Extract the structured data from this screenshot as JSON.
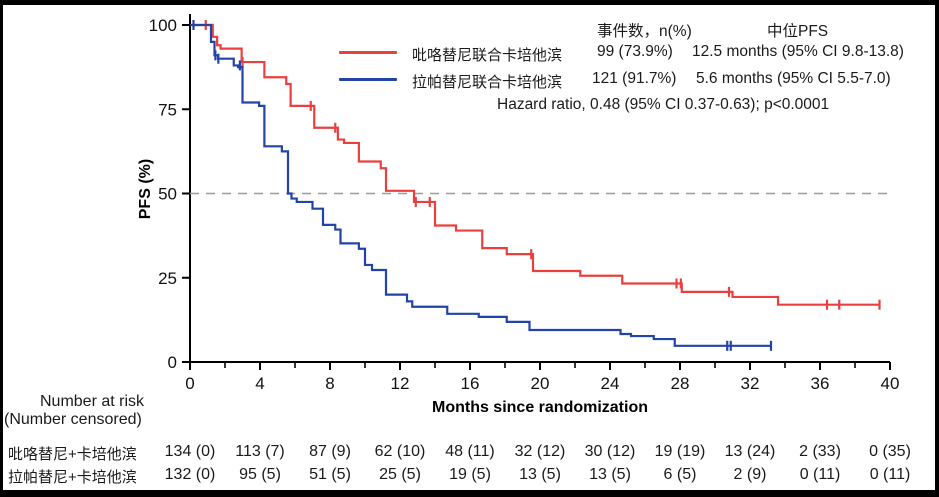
{
  "legend": {
    "col_event_header": "事件数，n(%)",
    "col_median_header": "中位PFS",
    "hazard": "Hazard ratio, 0.48 (95% CI 0.37-0.63); p<0.0001",
    "series": [
      {
        "label": "吡咯替尼联合卡培他滨",
        "events": "99 (73.9%)",
        "median": "12.5 months (95% CI 9.8-13.8)"
      },
      {
        "label": "拉帕替尼联合卡培他滨",
        "events": "121 (91.7%)",
        "median": "5.6 months (95% CI 5.5-7.0)"
      }
    ]
  },
  "chart_data": {
    "type": "line",
    "subtype": "kaplan-meier-step",
    "xlabel": "Months since randomization",
    "ylabel": "PFS (%)",
    "xlim": [
      0,
      40
    ],
    "ylim": [
      0,
      100
    ],
    "xticks": [
      0,
      4,
      8,
      12,
      16,
      20,
      24,
      28,
      32,
      36,
      40
    ],
    "xticks_minor_step": 2,
    "yticks": [
      0,
      25,
      50,
      75,
      100
    ],
    "grid": false,
    "reference_line_y": 50,
    "legend_position": "top-center",
    "series": [
      {
        "key": "pyrotinib-capecitabine",
        "name": "吡咯替尼联合卡培他滨",
        "color": "#e9403f",
        "median_months": 12.5,
        "start": 100,
        "end_time": 39.4,
        "drops": [
          [
            1.3,
            96.5
          ],
          [
            1.55,
            94
          ],
          [
            1.75,
            93
          ],
          [
            2.95,
            89
          ],
          [
            4.25,
            84.5
          ],
          [
            5.5,
            82.5
          ],
          [
            5.75,
            76
          ],
          [
            7.1,
            69.5
          ],
          [
            8.45,
            66
          ],
          [
            8.8,
            65
          ],
          [
            9.65,
            59.5
          ],
          [
            10.9,
            57.5
          ],
          [
            11.2,
            50.8
          ],
          [
            12.8,
            47.5
          ],
          [
            14.0,
            40.5
          ],
          [
            15.2,
            39
          ],
          [
            16.7,
            33.8
          ],
          [
            18.1,
            32
          ],
          [
            19.6,
            27
          ],
          [
            22.3,
            25.6
          ],
          [
            24.7,
            23.3
          ],
          [
            28.1,
            20.8
          ],
          [
            31.0,
            19.3
          ],
          [
            33.6,
            17
          ]
        ],
        "censors": [
          [
            0.9,
            100
          ],
          [
            3.0,
            89
          ],
          [
            6.9,
            76
          ],
          [
            8.3,
            69.5
          ],
          [
            12.9,
            47.5
          ],
          [
            13.7,
            47.5
          ],
          [
            19.5,
            32
          ],
          [
            27.8,
            23.3
          ],
          [
            28.05,
            23.3
          ],
          [
            30.8,
            20.8
          ],
          [
            36.4,
            17
          ],
          [
            37.1,
            17
          ],
          [
            39.4,
            17
          ]
        ]
      },
      {
        "key": "lapatinib-capecitabine",
        "name": "拉帕替尼联合卡培他滨",
        "color": "#2344a7",
        "median_months": 5.6,
        "start": 100,
        "end_time": 33.2,
        "drops": [
          [
            1.2,
            95
          ],
          [
            1.4,
            91
          ],
          [
            1.6,
            90
          ],
          [
            2.5,
            88
          ],
          [
            2.75,
            87.5
          ],
          [
            3.0,
            77
          ],
          [
            3.95,
            76
          ],
          [
            4.25,
            64
          ],
          [
            5.25,
            62.5
          ],
          [
            5.6,
            50
          ],
          [
            5.8,
            48.5
          ],
          [
            6.1,
            47.5
          ],
          [
            7.0,
            45.5
          ],
          [
            7.6,
            40.7
          ],
          [
            8.3,
            39.3
          ],
          [
            8.6,
            35.2
          ],
          [
            9.65,
            33.6
          ],
          [
            10.0,
            28.8
          ],
          [
            10.4,
            27.3
          ],
          [
            11.2,
            20
          ],
          [
            12.4,
            18
          ],
          [
            12.7,
            16.4
          ],
          [
            14.7,
            14.3
          ],
          [
            16.5,
            13.4
          ],
          [
            18.1,
            11.9
          ],
          [
            19.4,
            9.5
          ],
          [
            24.6,
            8.3
          ],
          [
            25.2,
            7.7
          ],
          [
            26.5,
            6.8
          ],
          [
            27.7,
            4.8
          ]
        ],
        "censors": [
          [
            0.2,
            100
          ],
          [
            1.45,
            91
          ],
          [
            1.62,
            90
          ],
          [
            2.85,
            88
          ],
          [
            30.7,
            4.8
          ],
          [
            30.9,
            4.8
          ],
          [
            33.2,
            4.8
          ]
        ]
      }
    ]
  },
  "risk_table": {
    "header_line1": "Number at risk",
    "header_line2": "(Number censored)",
    "rows": [
      {
        "label": "吡咯替尼+卡培他滨",
        "values": [
          "134 (0)",
          "113 (7)",
          "87 (9)",
          "62 (10)",
          "48 (11)",
          "32 (12)",
          "30 (12)",
          "19 (19)",
          "13 (24)",
          "2 (33)",
          "0 (35)"
        ]
      },
      {
        "label": "拉帕替尼+卡培他滨",
        "values": [
          "132 (0)",
          "95 (5)",
          "51 (5)",
          "25 (5)",
          "19 (5)",
          "13 (5)",
          "13 (5)",
          "6 (5)",
          "2 (9)",
          "0 (11)",
          "0 (11)"
        ]
      }
    ]
  }
}
